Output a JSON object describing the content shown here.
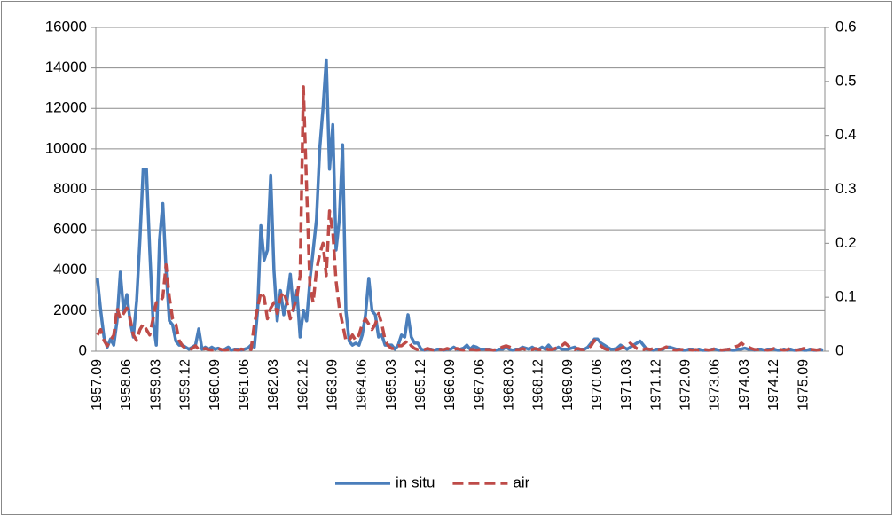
{
  "chart_data": {
    "type": "line",
    "categories": [
      "1957.09",
      null,
      null,
      null,
      null,
      null,
      null,
      null,
      null,
      "1958.06",
      null,
      null,
      null,
      null,
      null,
      null,
      null,
      null,
      "1959.03",
      null,
      null,
      null,
      null,
      null,
      null,
      null,
      null,
      "1959.12",
      null,
      null,
      null,
      null,
      null,
      null,
      null,
      null,
      "1960.09",
      null,
      null,
      null,
      null,
      null,
      null,
      null,
      null,
      "1961.06",
      null,
      null,
      null,
      null,
      null,
      null,
      null,
      null,
      "1962.03",
      null,
      null,
      null,
      null,
      null,
      null,
      null,
      null,
      "1962.12",
      null,
      null,
      null,
      null,
      null,
      null,
      null,
      null,
      "1963.09",
      null,
      null,
      null,
      null,
      null,
      null,
      null,
      null,
      "1964.06",
      null,
      null,
      null,
      null,
      null,
      null,
      null,
      null,
      "1965.03",
      null,
      null,
      null,
      null,
      null,
      null,
      null,
      null,
      "1965.12",
      null,
      null,
      null,
      null,
      null,
      null,
      null,
      null,
      "1966.09",
      null,
      null,
      null,
      null,
      null,
      null,
      null,
      null,
      "1967.06",
      null,
      null,
      null,
      null,
      null,
      null,
      null,
      null,
      "1968.03",
      null,
      null,
      null,
      null,
      null,
      null,
      null,
      null,
      "1968.12",
      null,
      null,
      null,
      null,
      null,
      null,
      null,
      null,
      "1969.09",
      null,
      null,
      null,
      null,
      null,
      null,
      null,
      null,
      "1970.06",
      null,
      null,
      null,
      null,
      null,
      null,
      null,
      null,
      "1971.03",
      null,
      null,
      null,
      null,
      null,
      null,
      null,
      null,
      "1971.12",
      null,
      null,
      null,
      null,
      null,
      null,
      null,
      null,
      "1972.09",
      null,
      null,
      null,
      null,
      null,
      null,
      null,
      null,
      "1973.06",
      null,
      null,
      null,
      null,
      null,
      null,
      null,
      null,
      "1974.03",
      null,
      null,
      null,
      null,
      null,
      null,
      null,
      null,
      "1974.12",
      null,
      null,
      null,
      null,
      null,
      null,
      null,
      null,
      "1975.09",
      null,
      null,
      null,
      null,
      null,
      null
    ],
    "series": [
      {
        "name": "in situ",
        "color": "#4a7ebb",
        "values": [
          3600,
          2000,
          700,
          200,
          600,
          300,
          1500,
          3900,
          2000,
          2800,
          1500,
          700,
          2500,
          5500,
          9000,
          9000,
          5000,
          1500,
          300,
          5500,
          7300,
          4000,
          1500,
          1300,
          500,
          300,
          300,
          200,
          100,
          200,
          300,
          1100,
          100,
          200,
          100,
          200,
          100,
          150,
          50,
          100,
          200,
          50,
          100,
          100,
          50,
          100,
          150,
          300,
          200,
          2000,
          6200,
          4500,
          5000,
          8700,
          4000,
          1500,
          3000,
          1800,
          2500,
          3800,
          2000,
          3000,
          700,
          2000,
          1500,
          3500,
          5000,
          6500,
          10000,
          12000,
          14400,
          9000,
          11200,
          5000,
          6500,
          10200,
          2000,
          500,
          300,
          400,
          300,
          800,
          1800,
          3600,
          2000,
          1800,
          700,
          800,
          300,
          300,
          300,
          100,
          300,
          800,
          700,
          1800,
          700,
          400,
          400,
          100,
          50,
          100,
          100,
          50,
          100,
          100,
          50,
          100,
          100,
          200,
          100,
          100,
          150,
          300,
          100,
          250,
          200,
          100,
          100,
          100,
          100,
          50,
          50,
          100,
          100,
          200,
          100,
          50,
          100,
          100,
          200,
          150,
          100,
          200,
          100,
          100,
          200,
          100,
          300,
          100,
          100,
          200,
          100,
          100,
          100,
          150,
          200,
          100,
          100,
          100,
          200,
          400,
          600,
          600,
          400,
          300,
          200,
          100,
          100,
          150,
          300,
          200,
          100,
          200,
          300,
          400,
          500,
          300,
          100,
          100,
          50,
          100,
          100,
          100,
          200,
          200,
          150,
          100,
          100,
          50,
          50,
          100,
          100,
          50,
          100,
          50,
          50,
          50,
          100,
          100,
          50,
          50,
          50,
          100,
          50,
          50,
          100,
          100,
          150,
          100,
          100,
          50,
          100,
          100,
          50,
          100,
          100,
          100,
          50,
          50,
          100,
          50,
          100,
          50,
          50,
          100,
          50,
          50,
          100,
          50,
          50,
          100,
          50
        ]
      },
      {
        "name": "air",
        "color": "#be4b48",
        "axis": "y2",
        "dashed": true,
        "values": [
          0.03,
          0.04,
          0.02,
          0.01,
          0.02,
          0.03,
          0.08,
          0.06,
          0.07,
          0.08,
          0.06,
          0.03,
          0.02,
          0.04,
          0.05,
          0.04,
          0.03,
          0.06,
          0.09,
          0.09,
          0.1,
          0.16,
          0.1,
          0.06,
          0.05,
          0.02,
          0.01,
          0.005,
          0.003,
          0.005,
          0.01,
          0.003,
          0.003,
          0.005,
          0.003,
          0.002,
          0.003,
          0.005,
          0.003,
          0.002,
          0.003,
          0.005,
          0.003,
          0.002,
          0.004,
          0.003,
          0.005,
          0.003,
          0.05,
          0.08,
          0.11,
          0.1,
          0.06,
          0.08,
          0.09,
          0.07,
          0.1,
          0.11,
          0.09,
          0.06,
          0.08,
          0.1,
          0.14,
          0.49,
          0.3,
          0.12,
          0.09,
          0.15,
          0.18,
          0.2,
          0.14,
          0.26,
          0.22,
          0.13,
          0.08,
          0.05,
          0.02,
          0.02,
          0.03,
          0.02,
          0.03,
          0.05,
          0.06,
          0.05,
          0.04,
          0.05,
          0.07,
          0.05,
          0.02,
          0.01,
          0.005,
          0.005,
          0.01,
          0.01,
          0.015,
          0.02,
          0.01,
          0.005,
          0.003,
          0.002,
          0.003,
          0.005,
          0.003,
          0.002,
          0.005,
          0.003,
          0.003,
          0.005,
          0.003,
          0.003,
          0.005,
          0.003,
          0.002,
          0.005,
          0.003,
          0.003,
          0.002,
          0.003,
          0.005,
          0.003,
          0.003,
          0.002,
          0.003,
          0.005,
          0.008,
          0.01,
          0.008,
          0.005,
          0.003,
          0.003,
          0.005,
          0.003,
          0.002,
          0.003,
          0.005,
          0.003,
          0.003,
          0.005,
          0.003,
          0.003,
          0.005,
          0.008,
          0.01,
          0.015,
          0.01,
          0.005,
          0.003,
          0.005,
          0.003,
          0.003,
          0.005,
          0.01,
          0.02,
          0.015,
          0.01,
          0.005,
          0.003,
          0.003,
          0.002,
          0.003,
          0.005,
          0.008,
          0.01,
          0.015,
          0.01,
          0.005,
          0.003,
          0.003,
          0.005,
          0.003,
          0.005,
          0.003,
          0.003,
          0.005,
          0.008,
          0.005,
          0.003,
          0.002,
          0.003,
          0.003,
          0.002,
          0.003,
          0.002,
          0.003,
          0.002,
          0.002,
          0.003,
          0.002,
          0.003,
          0.005,
          0.003,
          0.002,
          0.003,
          0.003,
          0.005,
          0.008,
          0.01,
          0.015,
          0.01,
          0.008,
          0.005,
          0.003,
          0.003,
          0.005,
          0.003,
          0.002,
          0.003,
          0.005,
          0.003,
          0.003,
          0.002,
          0.003,
          0.005,
          0.003,
          0.002,
          0.003,
          0.005,
          0.005,
          0.003,
          0.003,
          0.002,
          0.003,
          0.002
        ]
      }
    ],
    "ylim": [
      0,
      16000
    ],
    "yticks": [
      0,
      2000,
      4000,
      6000,
      8000,
      10000,
      12000,
      14000,
      16000
    ],
    "y2lim": [
      0,
      0.6
    ],
    "y2ticks": [
      0,
      0.1,
      0.2,
      0.3,
      0.4,
      0.5,
      0.6
    ],
    "grid": true,
    "legend": "bottom"
  }
}
